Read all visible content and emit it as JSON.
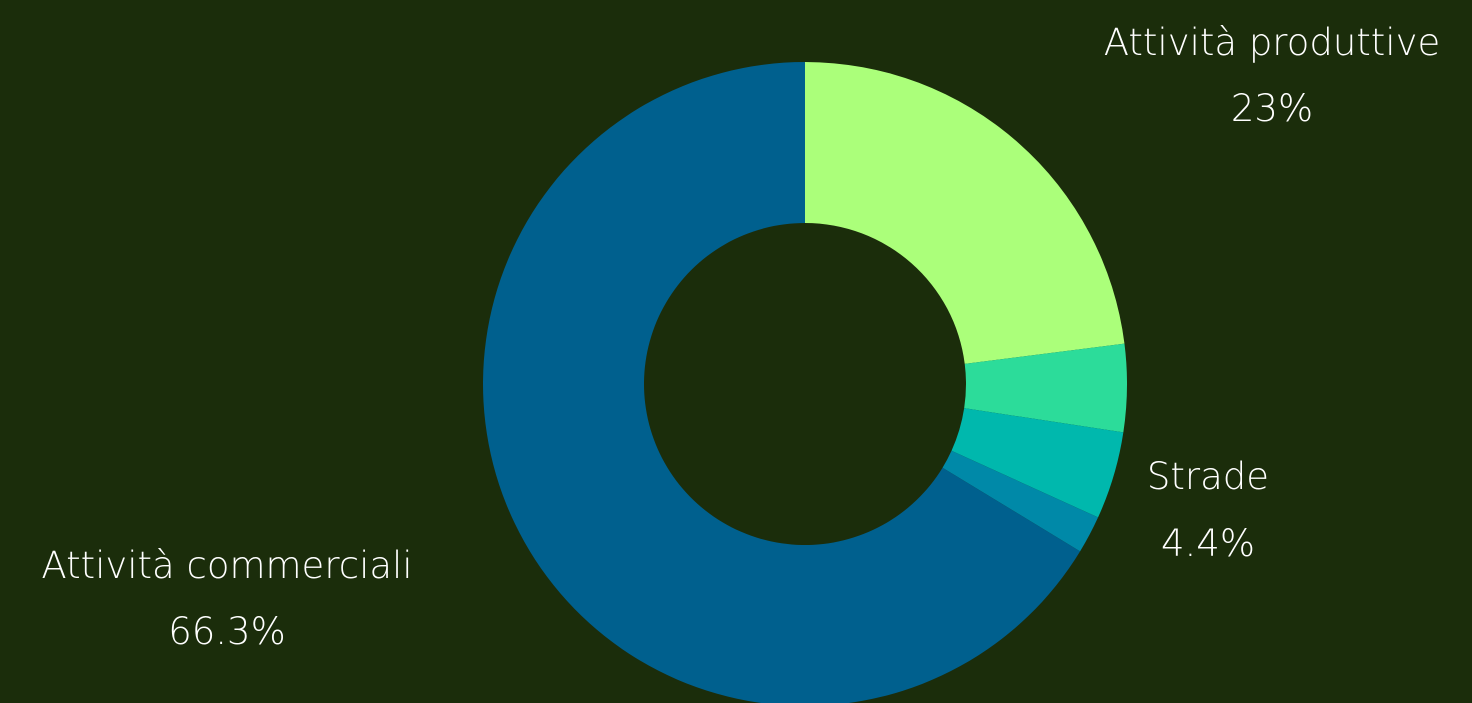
{
  "chart_data": {
    "type": "pie",
    "variant": "donut",
    "title": "",
    "background_color": "#1b2d0b",
    "label_color": "#ffffff",
    "slices": [
      {
        "label": "Attività produttive",
        "value": 23.0,
        "value_label": "23%",
        "color": "#abff7a"
      },
      {
        "label": "",
        "value": 4.4,
        "value_label": "",
        "color": "#2cdc9a"
      },
      {
        "label": "Strade",
        "value": 4.4,
        "value_label": "4.4%",
        "color": "#00b8ad"
      },
      {
        "label": "",
        "value": 1.9,
        "value_label": "",
        "color": "#0089a8"
      },
      {
        "label": "Attività commerciali",
        "value": 66.3,
        "value_label": "66.3%",
        "color": "#00608e"
      }
    ]
  }
}
